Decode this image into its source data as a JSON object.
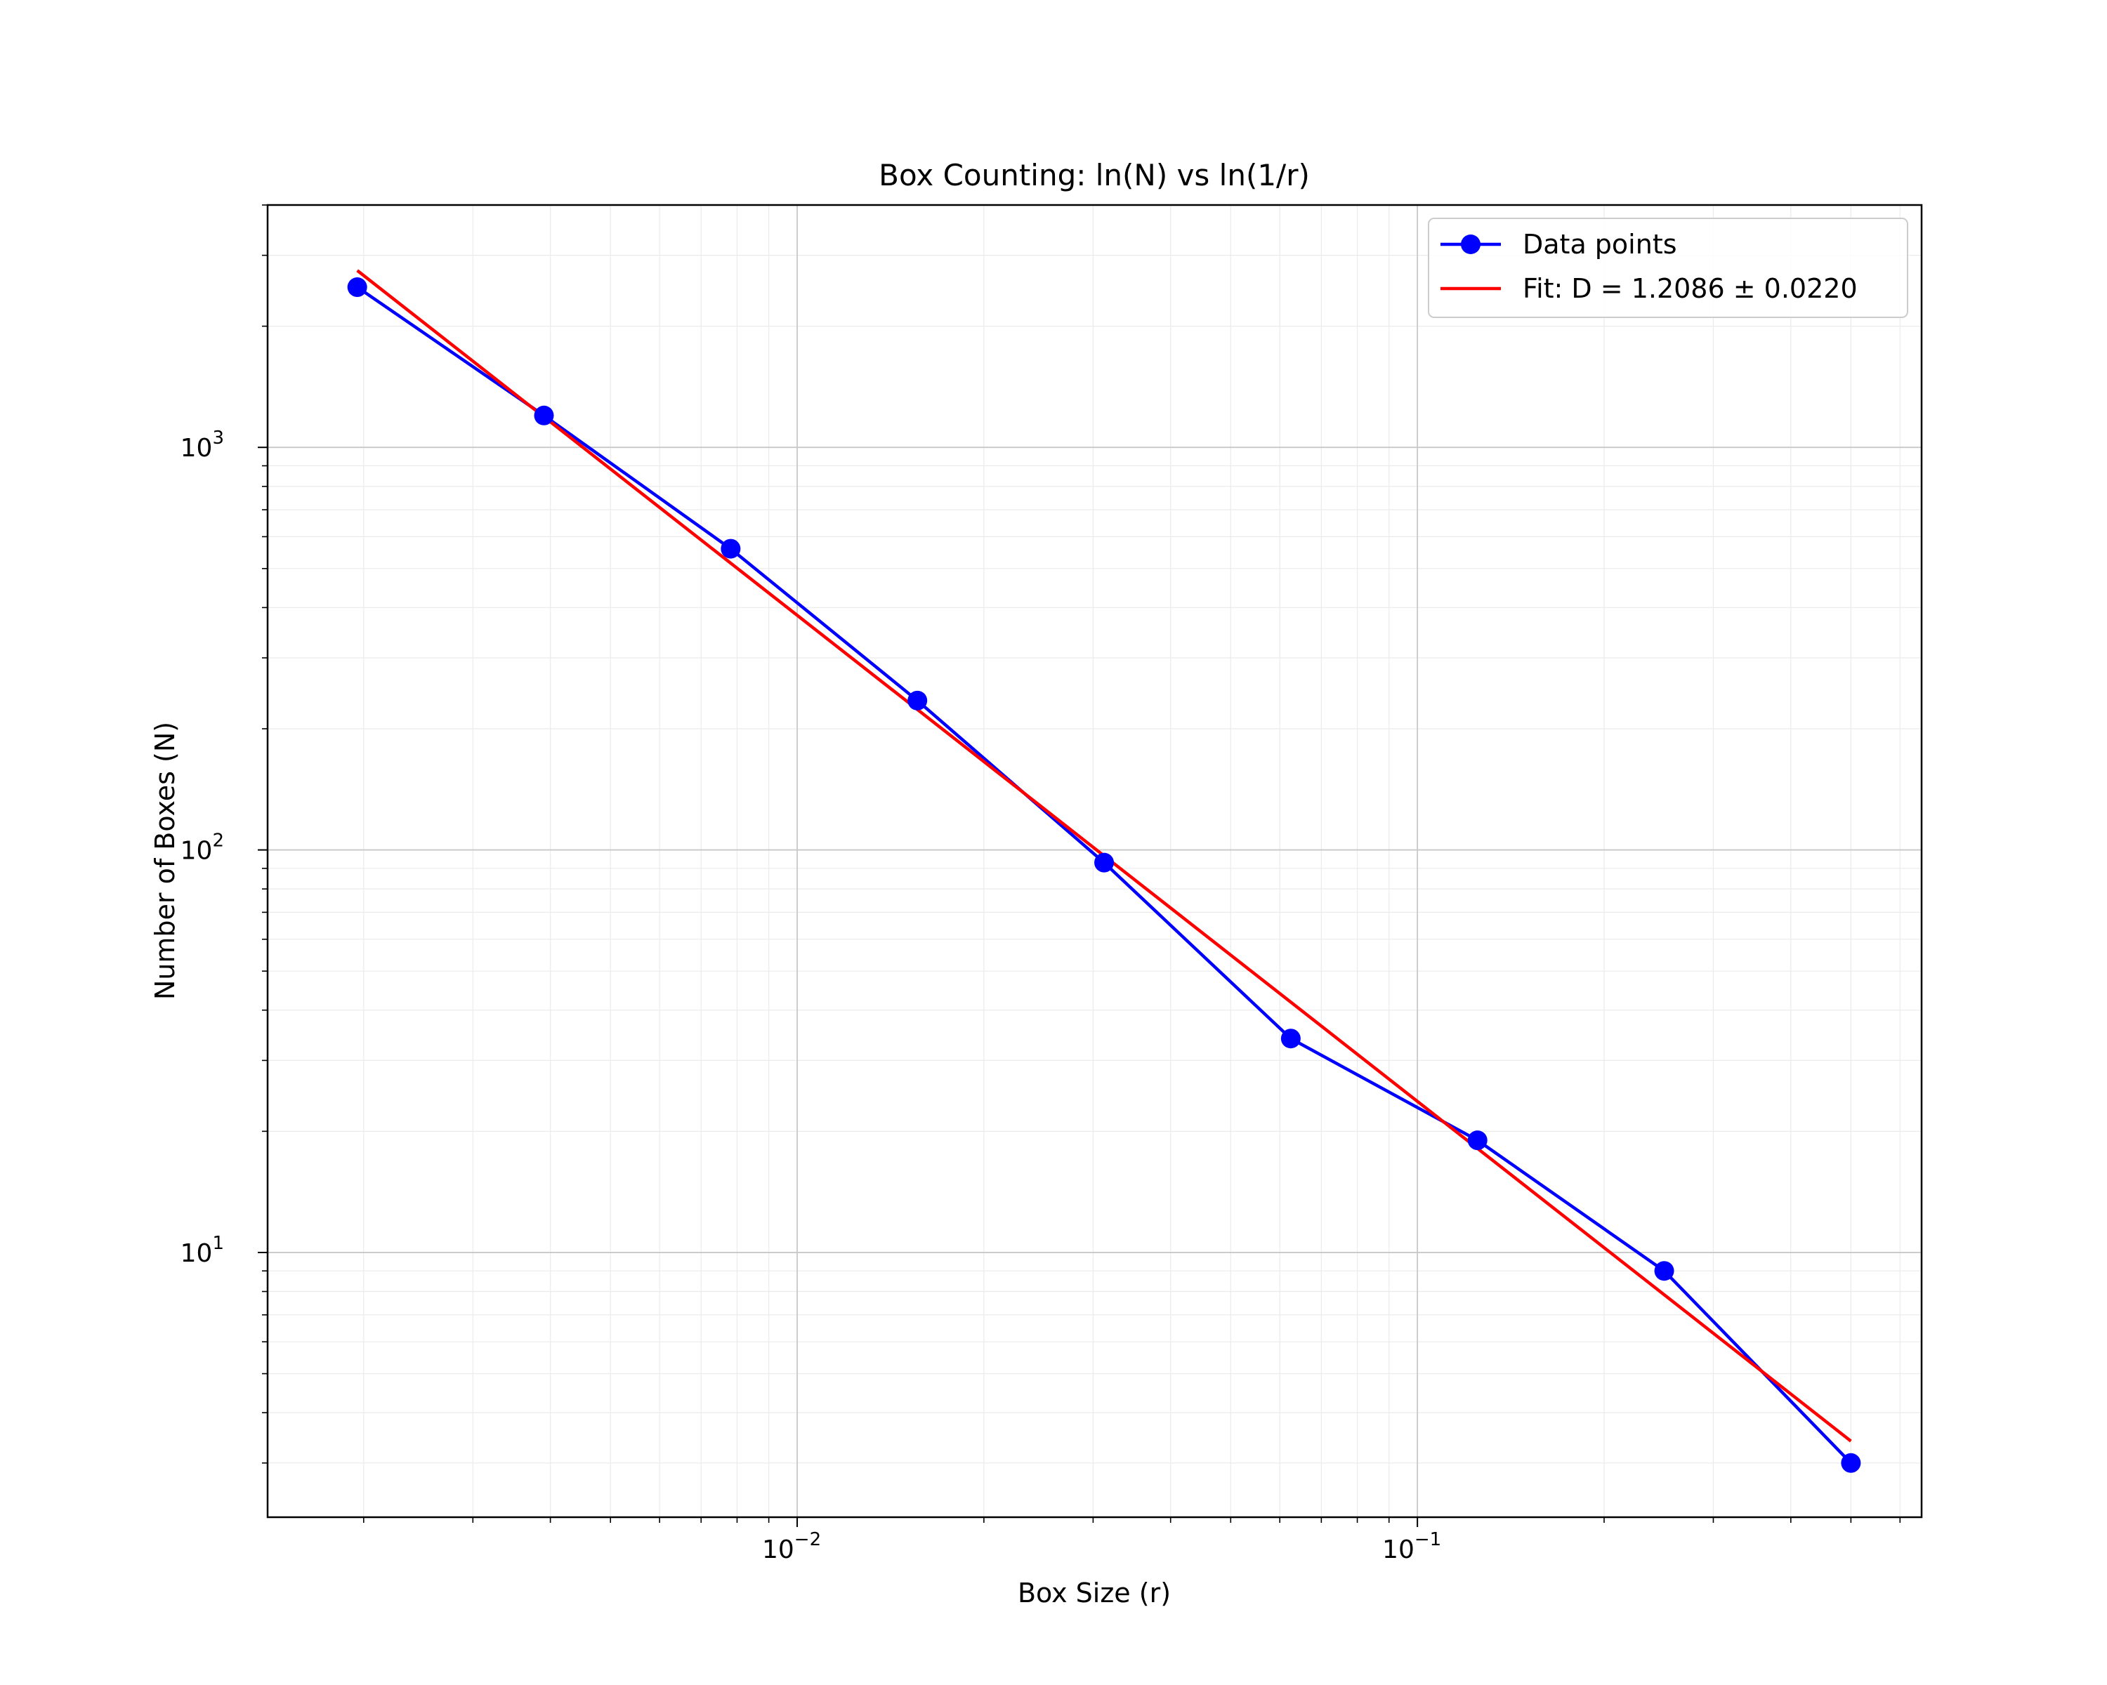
{
  "chart_data": {
    "type": "line",
    "title": "Box Counting: ln(N) vs ln(1/r)",
    "xlabel": "Box Size (r)",
    "ylabel": "Number of Boxes (N)",
    "xscale": "log",
    "yscale": "log",
    "xlim": [
      0.0014,
      0.65
    ],
    "ylim": [
      2.2,
      4000
    ],
    "x_major_ticks": [
      {
        "value": 0.01,
        "base": "10",
        "exp": "−2"
      },
      {
        "value": 0.1,
        "base": "10",
        "exp": "−1"
      }
    ],
    "y_major_ticks": [
      {
        "value": 10,
        "base": "10",
        "exp": "1"
      },
      {
        "value": 100,
        "base": "10",
        "exp": "2"
      },
      {
        "value": 1000,
        "base": "10",
        "exp": "3"
      }
    ],
    "grid": true,
    "legend_position": "top-right",
    "series": [
      {
        "name": "Data points",
        "style": "line-marker",
        "color": "#0000ff",
        "x": [
          0.001953,
          0.003906,
          0.0078125,
          0.015625,
          0.03125,
          0.0625,
          0.125,
          0.25,
          0.5
        ],
        "y": [
          2500,
          1200,
          560,
          235,
          93,
          34,
          19,
          9,
          3
        ]
      },
      {
        "name": "Fit: D = 1.2086 ± 0.0220",
        "style": "line",
        "color": "#ff0000",
        "slope": -1.2086,
        "x_range": [
          0.001953,
          0.5
        ],
        "y_at_x_min": 2750,
        "y_at_x_max": 3.4
      }
    ]
  }
}
